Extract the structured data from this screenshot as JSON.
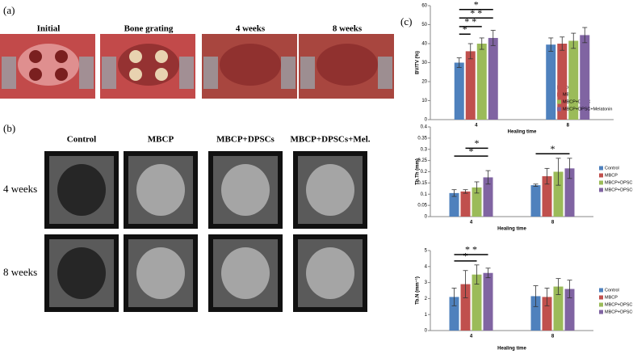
{
  "panel_labels": [
    "(a)",
    "(b)",
    "(c)"
  ],
  "photos": [
    "Initial",
    "Bone grating",
    "4 weeks",
    "8 weeks"
  ],
  "ct_columns": [
    "Control",
    "MBCP",
    "MBCP+DPSCs",
    "MBCP+DPSCs+Mel."
  ],
  "ct_rows": [
    "4 weeks",
    "8 weeks"
  ],
  "chart_data": [
    {
      "type": "bar",
      "y_label": "BV/TV (%)",
      "x_label": "Healing time",
      "categories": [
        "4",
        "8"
      ],
      "ylim": [
        0,
        60
      ],
      "yticks": [
        0,
        10,
        20,
        30,
        40,
        50,
        60
      ],
      "series": [
        {
          "name": "Control",
          "color": "#4f81bd",
          "values": [
            30,
            39.5
          ],
          "errors": [
            2.5,
            3.5
          ]
        },
        {
          "name": "MBCP",
          "color": "#c0504d",
          "values": [
            36,
            40
          ],
          "errors": [
            4,
            3.5
          ]
        },
        {
          "name": "MBCP+DPSC",
          "color": "#9bbb59",
          "values": [
            40,
            41.5
          ],
          "errors": [
            3,
            4
          ]
        },
        {
          "name": "MBCP+DPSC+Melatonin",
          "color": "#8064a2",
          "values": [
            43,
            44.5
          ],
          "errors": [
            4,
            4
          ]
        }
      ],
      "annotations": [
        "*",
        "* *",
        "* *",
        "*"
      ]
    },
    {
      "type": "bar",
      "y_label": "Tb.Th (mm)",
      "x_label": "Healing time",
      "categories": [
        "4",
        "8"
      ],
      "ylim": [
        0,
        0.4
      ],
      "yticks": [
        0,
        0.05,
        0.1,
        0.15,
        0.2,
        0.25,
        0.3,
        0.35,
        0.4
      ],
      "series": [
        {
          "name": "Control",
          "color": "#4f81bd",
          "values": [
            0.105,
            0.14
          ],
          "errors": [
            0.015,
            0.005
          ]
        },
        {
          "name": "MBCP",
          "color": "#c0504d",
          "values": [
            0.112,
            0.18
          ],
          "errors": [
            0.008,
            0.035
          ]
        },
        {
          "name": "MBCP+DPSC",
          "color": "#9bbb59",
          "values": [
            0.13,
            0.2
          ],
          "errors": [
            0.025,
            0.06
          ]
        },
        {
          "name": "MBCP+DPSC+Melatonin",
          "color": "#8064a2",
          "values": [
            0.175,
            0.215
          ],
          "errors": [
            0.03,
            0.045
          ]
        }
      ],
      "annotations": [
        "*",
        "*",
        "*"
      ]
    },
    {
      "type": "bar",
      "y_label": "Tb.N (mm⁻¹)",
      "x_label": "Healing time",
      "categories": [
        "4",
        "8"
      ],
      "ylim": [
        0,
        5
      ],
      "yticks": [
        0,
        1,
        2,
        3,
        4,
        5
      ],
      "series": [
        {
          "name": "Control",
          "color": "#4f81bd",
          "values": [
            2.1,
            2.15
          ],
          "errors": [
            0.55,
            0.65
          ]
        },
        {
          "name": "MBCP",
          "color": "#c0504d",
          "values": [
            2.9,
            2.1
          ],
          "errors": [
            0.85,
            0.55
          ]
        },
        {
          "name": "MBCP+DPSC",
          "color": "#9bbb59",
          "values": [
            3.5,
            2.75
          ],
          "errors": [
            0.6,
            0.5
          ]
        },
        {
          "name": "MBCP+DPSC+Melatonin",
          "color": "#8064a2",
          "values": [
            3.6,
            2.6
          ],
          "errors": [
            0.3,
            0.55
          ]
        }
      ],
      "annotations": [
        "* *",
        "*"
      ]
    }
  ]
}
